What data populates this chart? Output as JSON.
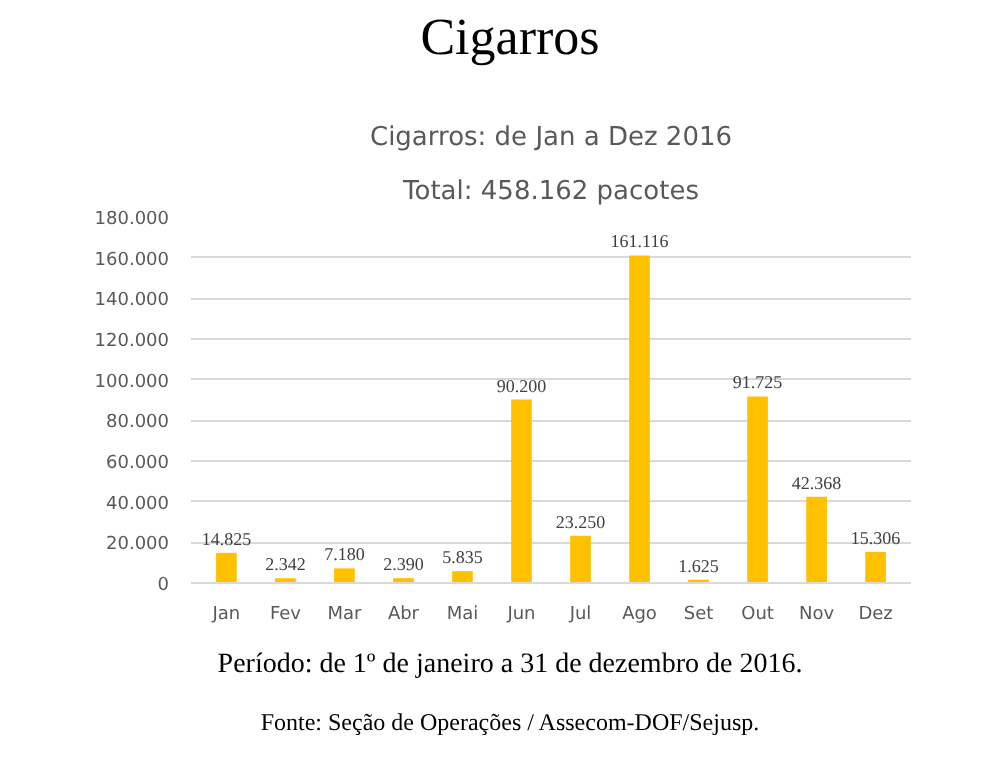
{
  "chart_data": {
    "type": "bar",
    "title": "Cigarros: de Jan a Dez 2016",
    "subtitle": "Total: 458.162 pacotes",
    "annotations": [
      "Cigarros",
      "Período: de 1º de janeiro a 31 de dezembro de 2016.",
      "Fonte: Seção de Operações / Assecom-DOF/Sejusp."
    ],
    "categories": [
      "Jan",
      "Fev",
      "Mar",
      "Abr",
      "Mai",
      "Jun",
      "Jul",
      "Ago",
      "Set",
      "Out",
      "Nov",
      "Dez"
    ],
    "values": [
      14825,
      2342,
      7180,
      2390,
      5835,
      90200,
      23250,
      161116,
      1625,
      91725,
      42368,
      15306
    ],
    "value_labels": [
      "14.825",
      "2.342",
      "7.180",
      "2.390",
      "5.835",
      "90.200",
      "23.250",
      "161.116",
      "1.625",
      "91.725",
      "42.368",
      "15.306"
    ],
    "color": "#ffc000",
    "ylim": [
      0,
      180000
    ],
    "yticks": [
      {
        "value": 0,
        "label": "0"
      },
      {
        "value": 20000,
        "label": "20.000"
      },
      {
        "value": 40000,
        "label": "40.000"
      },
      {
        "value": 60000,
        "label": "60.000"
      },
      {
        "value": 80000,
        "label": "80.000"
      },
      {
        "value": 100000,
        "label": "100.000"
      },
      {
        "value": 120000,
        "label": "120.000"
      },
      {
        "value": 140000,
        "label": "140.000"
      },
      {
        "value": 160000,
        "label": "160.000"
      },
      {
        "value": 180000,
        "label": "180.000"
      }
    ],
    "grid": "y"
  }
}
